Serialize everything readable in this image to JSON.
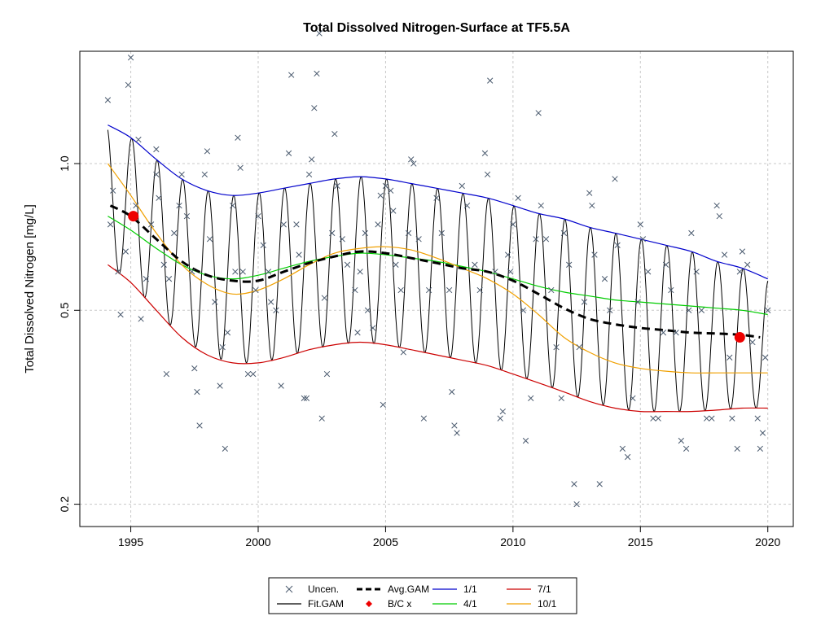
{
  "chart_data": {
    "type": "line",
    "title": "Total Dissolved Nitrogen-Surface at TF5.5A",
    "xlabel": "",
    "ylabel": "Total Dissolved Nitrogen [mg/L]",
    "xlim": [
      1993.0,
      2021.0
    ],
    "ylim": [
      0.18,
      1.7
    ],
    "y_scale": "log",
    "x_ticks": [
      1995,
      2000,
      2005,
      2010,
      2015,
      2020
    ],
    "y_ticks": [
      0.2,
      0.5,
      1.0
    ],
    "y_tick_labels": [
      "0.2",
      "0.5",
      "1.0"
    ],
    "grid": true,
    "legend_position": "bottom-center",
    "legend": [
      {
        "label": "Uncen.",
        "symbol": "cross",
        "color": "#4a5a6e"
      },
      {
        "label": "Fit.GAM",
        "symbol": "line",
        "color": "#000000"
      },
      {
        "label": "Avg.GAM",
        "symbol": "dashed",
        "color": "#000000"
      },
      {
        "label": "B/C x",
        "symbol": "diamond",
        "color": "#ff0000"
      },
      {
        "label": "1/1",
        "symbol": "line",
        "color": "#0000cc"
      },
      {
        "label": "4/1",
        "symbol": "line",
        "color": "#00cc00"
      },
      {
        "label": "7/1",
        "symbol": "line",
        "color": "#cc0000"
      },
      {
        "label": "10/1",
        "symbol": "line",
        "color": "#f0a000"
      }
    ],
    "series": [
      {
        "name": "1/1",
        "color": "#0000cc",
        "x": [
          1994.1,
          1995,
          1996,
          1997,
          1998,
          1999,
          2000,
          2001,
          2002,
          2003,
          2004,
          2005,
          2006,
          2007,
          2008,
          2009,
          2010,
          2011,
          2012,
          2013,
          2014,
          2015,
          2016,
          2017,
          2018,
          2019,
          2020
        ],
        "y": [
          1.2,
          1.13,
          1.02,
          0.93,
          0.88,
          0.86,
          0.87,
          0.89,
          0.91,
          0.93,
          0.94,
          0.93,
          0.91,
          0.89,
          0.87,
          0.85,
          0.82,
          0.79,
          0.77,
          0.74,
          0.72,
          0.7,
          0.68,
          0.66,
          0.63,
          0.61,
          0.58
        ]
      },
      {
        "name": "4/1",
        "color": "#00cc00",
        "x": [
          1994.1,
          1995,
          1996,
          1997,
          1998,
          1999,
          2000,
          2001,
          2002,
          2003,
          2004,
          2005,
          2006,
          2007,
          2008,
          2009,
          2010,
          2011,
          2012,
          2013,
          2014,
          2015,
          2016,
          2017,
          2018,
          2019,
          2020
        ],
        "y": [
          0.78,
          0.73,
          0.67,
          0.62,
          0.59,
          0.58,
          0.59,
          0.61,
          0.63,
          0.645,
          0.655,
          0.65,
          0.64,
          0.63,
          0.615,
          0.6,
          0.58,
          0.56,
          0.545,
          0.535,
          0.525,
          0.52,
          0.515,
          0.51,
          0.505,
          0.5,
          0.49
        ]
      },
      {
        "name": "7/1",
        "color": "#cc0000",
        "x": [
          1994.1,
          1995,
          1996,
          1997,
          1998,
          1999,
          2000,
          2001,
          2002,
          2003,
          2004,
          2005,
          2006,
          2007,
          2008,
          2009,
          2010,
          2011,
          2012,
          2013,
          2014,
          2015,
          2016,
          2017,
          2018,
          2019,
          2020
        ],
        "y": [
          0.62,
          0.57,
          0.5,
          0.44,
          0.405,
          0.39,
          0.39,
          0.4,
          0.415,
          0.425,
          0.43,
          0.425,
          0.415,
          0.405,
          0.395,
          0.385,
          0.37,
          0.355,
          0.34,
          0.325,
          0.315,
          0.31,
          0.31,
          0.31,
          0.312,
          0.315,
          0.315
        ]
      },
      {
        "name": "10/1",
        "color": "#f0a000",
        "x": [
          1994.1,
          1995,
          1996,
          1997,
          1998,
          1999,
          2000,
          2001,
          2002,
          2003,
          2004,
          2005,
          2006,
          2007,
          2008,
          2009,
          2010,
          2011,
          2012,
          2013,
          2014,
          2015,
          2016,
          2017,
          2018,
          2019,
          2020
        ],
        "y": [
          1.0,
          0.86,
          0.72,
          0.62,
          0.565,
          0.54,
          0.55,
          0.58,
          0.62,
          0.655,
          0.67,
          0.675,
          0.665,
          0.64,
          0.61,
          0.58,
          0.54,
          0.49,
          0.44,
          0.41,
          0.39,
          0.38,
          0.375,
          0.372,
          0.372,
          0.372,
          0.372
        ]
      },
      {
        "name": "Avg.GAM",
        "color": "#000000",
        "dashed": true,
        "x": [
          1994.2,
          1995,
          1996,
          1997,
          1998,
          1999,
          2000,
          2001,
          2002,
          2003,
          2004,
          2005,
          2006,
          2007,
          2008,
          2009,
          2010,
          2011,
          2012,
          2013,
          2014,
          2015,
          2016,
          2017,
          2018,
          2019,
          2019.7
        ],
        "y": [
          0.82,
          0.78,
          0.7,
          0.63,
          0.59,
          0.575,
          0.575,
          0.6,
          0.625,
          0.645,
          0.66,
          0.655,
          0.64,
          0.625,
          0.61,
          0.6,
          0.575,
          0.54,
          0.505,
          0.48,
          0.468,
          0.46,
          0.455,
          0.45,
          0.448,
          0.445,
          0.44
        ]
      },
      {
        "name": "Fit.GAM",
        "color": "#000000",
        "oscillating": true,
        "x_start": 1994.1,
        "x_end": 2020.0,
        "peak_month": 1,
        "upper_ref": "1/1",
        "lower_ref": "7/1"
      }
    ],
    "bc_points": [
      {
        "x": 1995.1,
        "y": 0.78
      },
      {
        "x": 2018.9,
        "y": 0.44
      }
    ],
    "points": [
      [
        1994.1,
        1.35
      ],
      [
        1994.2,
        0.75
      ],
      [
        1994.3,
        0.88
      ],
      [
        1994.5,
        0.6
      ],
      [
        1994.6,
        0.49
      ],
      [
        1994.8,
        0.66
      ],
      [
        1994.9,
        1.45
      ],
      [
        1995.0,
        1.65
      ],
      [
        1995.2,
        0.82
      ],
      [
        1995.3,
        1.12
      ],
      [
        1995.4,
        0.48
      ],
      [
        1995.6,
        0.58
      ],
      [
        1995.8,
        0.75
      ],
      [
        1996.0,
        0.95
      ],
      [
        1996.1,
        0.85
      ],
      [
        1996.3,
        0.62
      ],
      [
        1996.5,
        0.58
      ],
      [
        1996.7,
        0.72
      ],
      [
        1996.9,
        0.82
      ],
      [
        1996.0,
        1.07
      ],
      [
        1996.4,
        0.37
      ],
      [
        1997.0,
        0.95
      ],
      [
        1997.2,
        0.78
      ],
      [
        1997.4,
        0.6
      ],
      [
        1997.5,
        0.38
      ],
      [
        1997.6,
        0.34
      ],
      [
        1997.7,
        0.29
      ],
      [
        1997.9,
        0.95
      ],
      [
        1998.0,
        1.06
      ],
      [
        1998.1,
        0.7
      ],
      [
        1998.3,
        0.52
      ],
      [
        1998.5,
        0.35
      ],
      [
        1998.7,
        0.26
      ],
      [
        1998.6,
        0.42
      ],
      [
        1998.8,
        0.45
      ],
      [
        1999.0,
        0.82
      ],
      [
        1999.1,
        0.6
      ],
      [
        1999.2,
        1.13
      ],
      [
        1999.3,
        0.98
      ],
      [
        1999.4,
        0.6
      ],
      [
        1999.6,
        0.37
      ],
      [
        1999.8,
        0.37
      ],
      [
        1999.9,
        0.55
      ],
      [
        2000.0,
        0.78
      ],
      [
        2000.2,
        0.68
      ],
      [
        2000.4,
        0.6
      ],
      [
        2000.5,
        0.52
      ],
      [
        2000.7,
        0.5
      ],
      [
        2000.9,
        0.35
      ],
      [
        2001.0,
        0.75
      ],
      [
        2001.2,
        1.05
      ],
      [
        2001.3,
        1.52
      ],
      [
        2001.5,
        0.75
      ],
      [
        2001.6,
        0.65
      ],
      [
        2001.8,
        0.33
      ],
      [
        2001.9,
        0.33
      ],
      [
        2002.0,
        0.95
      ],
      [
        2002.1,
        1.02
      ],
      [
        2002.2,
        1.3
      ],
      [
        2002.3,
        1.53
      ],
      [
        2002.4,
        1.85
      ],
      [
        2002.5,
        0.3
      ],
      [
        2002.6,
        0.53
      ],
      [
        2002.7,
        0.37
      ],
      [
        2002.9,
        0.72
      ],
      [
        2003.0,
        1.15
      ],
      [
        2003.1,
        0.9
      ],
      [
        2003.3,
        0.7
      ],
      [
        2003.5,
        0.62
      ],
      [
        2003.8,
        0.55
      ],
      [
        2003.9,
        0.45
      ],
      [
        2004.0,
        0.6
      ],
      [
        2004.2,
        0.72
      ],
      [
        2004.3,
        0.5
      ],
      [
        2004.5,
        0.46
      ],
      [
        2004.7,
        0.75
      ],
      [
        2004.8,
        0.86
      ],
      [
        2004.9,
        0.32
      ],
      [
        2005.0,
        0.9
      ],
      [
        2005.2,
        0.88
      ],
      [
        2005.3,
        0.8
      ],
      [
        2005.4,
        0.62
      ],
      [
        2005.6,
        0.55
      ],
      [
        2005.7,
        0.41
      ],
      [
        2005.9,
        0.72
      ],
      [
        2006.0,
        1.02
      ],
      [
        2006.1,
        1.0
      ],
      [
        2006.3,
        0.7
      ],
      [
        2006.5,
        0.3
      ],
      [
        2006.7,
        0.55
      ],
      [
        2007.0,
        0.85
      ],
      [
        2007.2,
        0.72
      ],
      [
        2007.5,
        0.55
      ],
      [
        2007.6,
        0.34
      ],
      [
        2007.7,
        0.29
      ],
      [
        2007.8,
        0.28
      ],
      [
        2008.0,
        0.9
      ],
      [
        2008.2,
        0.82
      ],
      [
        2008.5,
        0.62
      ],
      [
        2008.7,
        0.55
      ],
      [
        2008.9,
        1.05
      ],
      [
        2009.0,
        0.95
      ],
      [
        2009.1,
        1.48
      ],
      [
        2009.3,
        0.6
      ],
      [
        2009.5,
        0.3
      ],
      [
        2009.6,
        0.31
      ],
      [
        2009.8,
        0.65
      ],
      [
        2009.9,
        0.6
      ],
      [
        2010.0,
        0.75
      ],
      [
        2010.2,
        0.85
      ],
      [
        2010.4,
        0.5
      ],
      [
        2010.5,
        0.27
      ],
      [
        2010.7,
        0.33
      ],
      [
        2010.9,
        0.7
      ],
      [
        2011.0,
        1.27
      ],
      [
        2011.1,
        0.82
      ],
      [
        2011.3,
        0.7
      ],
      [
        2011.5,
        0.55
      ],
      [
        2011.7,
        0.42
      ],
      [
        2011.9,
        0.33
      ],
      [
        2012.0,
        0.72
      ],
      [
        2012.2,
        0.62
      ],
      [
        2012.4,
        0.22
      ],
      [
        2012.5,
        0.2
      ],
      [
        2012.6,
        0.42
      ],
      [
        2012.8,
        0.52
      ],
      [
        2013.0,
        0.87
      ],
      [
        2013.1,
        0.82
      ],
      [
        2013.2,
        0.65
      ],
      [
        2013.4,
        0.22
      ],
      [
        2013.6,
        0.58
      ],
      [
        2013.8,
        0.5
      ],
      [
        2014.0,
        0.93
      ],
      [
        2014.1,
        0.68
      ],
      [
        2014.3,
        0.26
      ],
      [
        2014.5,
        0.25
      ],
      [
        2014.7,
        0.33
      ],
      [
        2014.9,
        0.52
      ],
      [
        2015.0,
        0.75
      ],
      [
        2015.1,
        0.7
      ],
      [
        2015.3,
        0.6
      ],
      [
        2015.5,
        0.3
      ],
      [
        2015.7,
        0.3
      ],
      [
        2015.9,
        0.45
      ],
      [
        2016.0,
        0.62
      ],
      [
        2016.2,
        0.55
      ],
      [
        2016.4,
        0.45
      ],
      [
        2016.6,
        0.27
      ],
      [
        2016.8,
        0.26
      ],
      [
        2016.9,
        0.5
      ],
      [
        2017.0,
        0.72
      ],
      [
        2017.2,
        0.6
      ],
      [
        2017.4,
        0.5
      ],
      [
        2017.6,
        0.3
      ],
      [
        2017.8,
        0.3
      ],
      [
        2018.0,
        0.82
      ],
      [
        2018.1,
        0.78
      ],
      [
        2018.3,
        0.65
      ],
      [
        2018.5,
        0.4
      ],
      [
        2018.6,
        0.3
      ],
      [
        2018.8,
        0.26
      ],
      [
        2018.9,
        0.6
      ],
      [
        2019.0,
        0.66
      ],
      [
        2019.2,
        0.62
      ],
      [
        2019.4,
        0.43
      ],
      [
        2019.6,
        0.3
      ],
      [
        2019.7,
        0.26
      ],
      [
        2019.8,
        0.28
      ],
      [
        2019.9,
        0.4
      ],
      [
        2020.0,
        0.5
      ]
    ]
  }
}
